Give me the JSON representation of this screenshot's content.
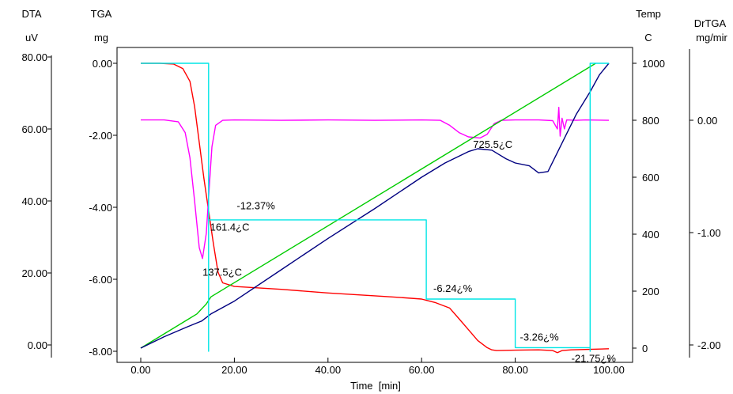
{
  "chart_data": {
    "type": "line",
    "xlabel": "Time  [min]",
    "x_ticks": [
      "0.00",
      "20.00",
      "40.00",
      "60.00",
      "80.00",
      "100.00"
    ],
    "xlim": [
      0,
      100
    ],
    "axes": {
      "dta": {
        "title": "DTA",
        "unit": "uV",
        "ticks": [
          "80.00",
          "60.00",
          "40.00",
          "20.00",
          "0.00"
        ],
        "range": [
          0,
          80
        ]
      },
      "tga": {
        "title": "TGA",
        "unit": "mg",
        "ticks": [
          "0.00",
          "-2.00",
          "-4.00",
          "-6.00",
          "-8.00"
        ],
        "range": [
          -8,
          0
        ]
      },
      "temp": {
        "title": "Temp",
        "unit": "C",
        "ticks": [
          "1000",
          "800",
          "600",
          "400",
          "200",
          "0"
        ],
        "range": [
          0,
          1000
        ]
      },
      "drtga": {
        "title": "DrTGA",
        "unit": "mg/mir",
        "ticks": [
          "0.00",
          "-1.00",
          "-2.00"
        ],
        "range": [
          -2,
          0
        ]
      }
    },
    "series": [
      {
        "axis": "tga",
        "color": "#ff0000",
        "x": [
          0,
          4,
          7,
          9,
          10.5,
          11.5,
          12.5,
          13.5,
          14.5,
          15.5,
          16.5,
          17.5,
          20,
          30,
          40,
          50,
          55,
          60,
          63,
          66,
          68,
          70,
          72,
          74,
          75,
          76,
          80,
          85,
          88,
          89,
          90,
          92,
          95,
          100
        ],
        "y": [
          0,
          0,
          -0.02,
          -0.15,
          -0.5,
          -1.2,
          -2.2,
          -3.2,
          -4.1,
          -5.0,
          -5.8,
          -6.1,
          -6.2,
          -6.28,
          -6.38,
          -6.46,
          -6.5,
          -6.55,
          -6.65,
          -6.8,
          -7.1,
          -7.4,
          -7.7,
          -7.9,
          -7.96,
          -7.98,
          -7.97,
          -7.96,
          -7.98,
          -8.04,
          -7.98,
          -7.96,
          -7.95,
          -7.93
        ]
      },
      {
        "axis": "dta",
        "color": "#ff00ff",
        "x": [
          0,
          5,
          8,
          9.5,
          10.5,
          11.5,
          12.5,
          13.2,
          14,
          14.6,
          15.2,
          16,
          17.5,
          20,
          30,
          40,
          50,
          60,
          64,
          66,
          68,
          70,
          72.5,
          74,
          75.5,
          77,
          80,
          85,
          88,
          89,
          89.3,
          89.6,
          90,
          90.5,
          91,
          93,
          95,
          100
        ],
        "y": [
          62.5,
          62.5,
          62.0,
          59,
          52,
          40,
          27,
          24,
          31,
          43,
          55,
          61,
          62.4,
          62.5,
          62.4,
          62.5,
          62.4,
          62.5,
          62.4,
          61,
          59,
          57.8,
          57.5,
          58.5,
          61.5,
          62.4,
          62.5,
          62.5,
          62.3,
          60,
          66,
          58,
          63,
          60,
          62.5,
          62.4,
          62.5,
          62.4
        ]
      },
      {
        "axis": "temp",
        "color": "#00cc00",
        "x": [
          0,
          10,
          12,
          14,
          15,
          97.2
        ],
        "y": [
          0,
          100,
          120,
          155,
          180,
          1000
        ]
      },
      {
        "axis": "temp",
        "color": "#000080",
        "x": [
          0,
          5,
          10,
          13,
          15,
          20,
          30,
          40,
          50,
          60,
          65,
          70,
          72,
          75,
          78,
          80,
          83,
          85,
          87,
          90,
          93,
          96,
          98,
          100
        ],
        "y": [
          0,
          40,
          75,
          95,
          120,
          165,
          275,
          385,
          490,
          600,
          650,
          690,
          700,
          695,
          665,
          650,
          640,
          615,
          620,
          720,
          820,
          900,
          960,
          1000
        ]
      },
      {
        "axis": "tga",
        "color": "#00e5e5",
        "x": [
          0,
          14.5,
          14.5,
          14.5,
          14.5,
          61,
          61,
          80,
          80,
          96,
          96,
          96,
          100
        ],
        "y": [
          0,
          0,
          -8,
          0,
          -4.35,
          -4.35,
          -6.55,
          -6.55,
          -7.9,
          -7.9,
          -8.0,
          0,
          0
        ]
      }
    ],
    "annotations": [
      {
        "text": "-12.37%",
        "x": 20.5,
        "y": -4.05,
        "axis": "tga"
      },
      {
        "text": "161.4¿C",
        "x": 14.8,
        "y": -4.65,
        "axis": "tga"
      },
      {
        "text": "137.5¿C",
        "x": 13.2,
        "y": -5.9,
        "axis": "tga"
      },
      {
        "text": "-6.24¿%",
        "x": 62.5,
        "y": -6.35,
        "axis": "tga"
      },
      {
        "text": "725.5¿C",
        "x": 71.0,
        "y": -2.35,
        "axis": "tga"
      },
      {
        "text": "-3.26¿%",
        "x": 81.0,
        "y": -7.7,
        "axis": "tga"
      },
      {
        "text": "-21.75¿%",
        "x": 92.0,
        "y": -8.3,
        "axis": "tga"
      }
    ]
  }
}
